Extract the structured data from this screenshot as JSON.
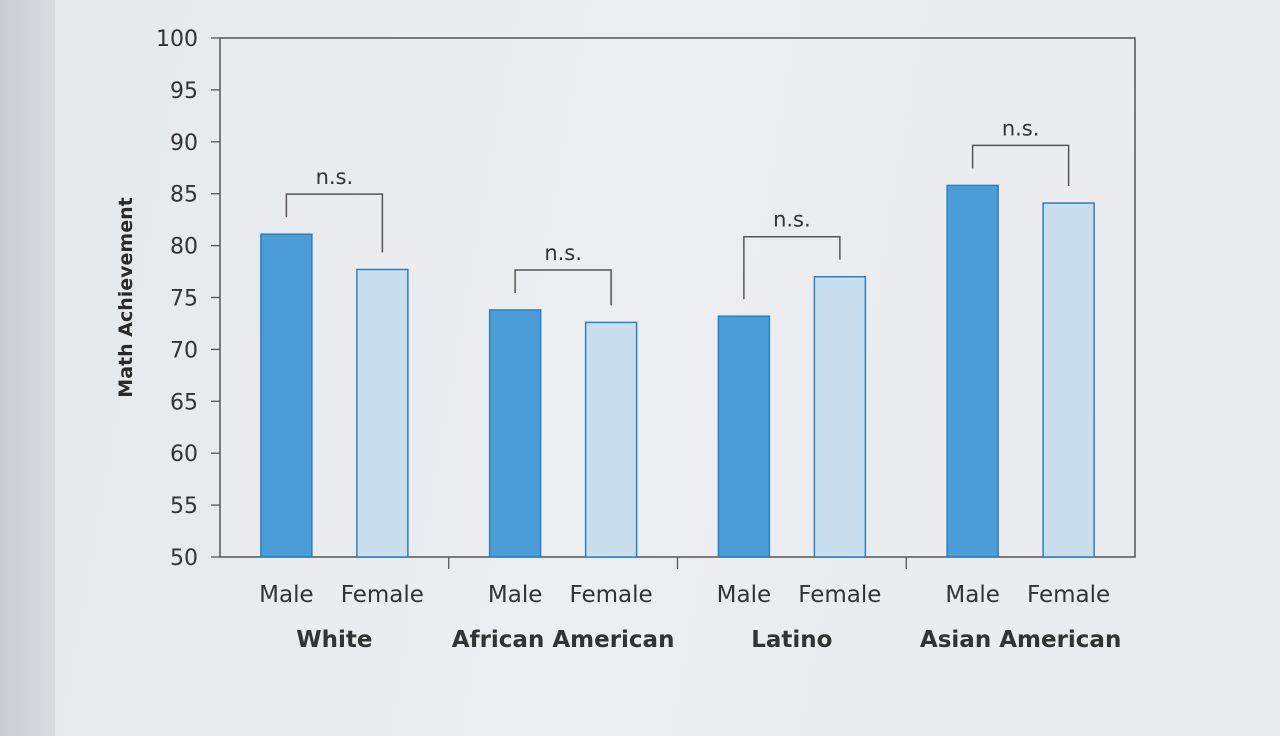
{
  "chart_data": {
    "type": "bar",
    "ylabel": "Math Achievement",
    "ylim": [
      50,
      100
    ],
    "yticks": [
      50,
      55,
      60,
      65,
      70,
      75,
      80,
      85,
      90,
      95,
      100
    ],
    "grid": false,
    "groups": [
      {
        "name": "White",
        "bars": [
          {
            "label": "Male",
            "value": 81.1
          },
          {
            "label": "Female",
            "value": 77.7
          }
        ],
        "annotation": "n.s."
      },
      {
        "name": "African American",
        "bars": [
          {
            "label": "Male",
            "value": 73.8
          },
          {
            "label": "Female",
            "value": 72.6
          }
        ],
        "annotation": "n.s."
      },
      {
        "name": "Latino",
        "bars": [
          {
            "label": "Male",
            "value": 73.2
          },
          {
            "label": "Female",
            "value": 77.0
          }
        ],
        "annotation": "n.s."
      },
      {
        "name": "Asian American",
        "bars": [
          {
            "label": "Male",
            "value": 85.8
          },
          {
            "label": "Female",
            "value": 84.1
          }
        ],
        "annotation": "n.s."
      }
    ],
    "colors": {
      "Male": "#4a9dd6",
      "Female": "#c9dff0",
      "stroke": "#2f7fbf",
      "axis": "#555555",
      "text": "#333333"
    }
  }
}
